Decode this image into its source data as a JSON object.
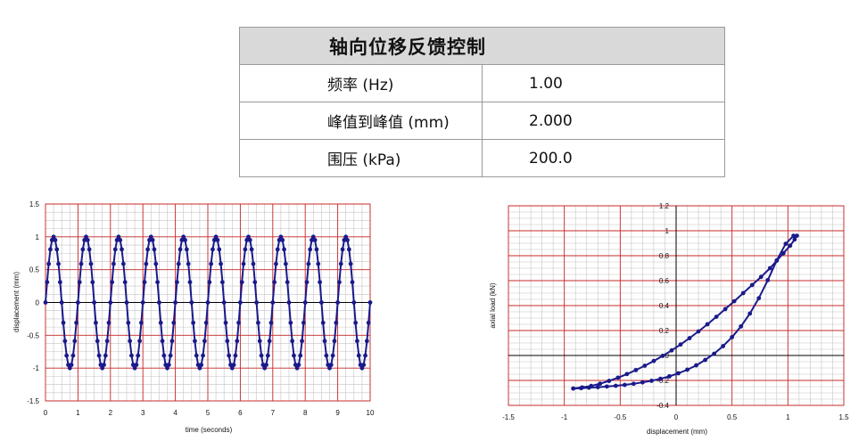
{
  "table": {
    "title": "轴向位移反馈控制",
    "rows": [
      {
        "label": "频率 (Hz)",
        "value": "1.00"
      },
      {
        "label": "峰值到峰值 (mm)",
        "value": "2.000"
      },
      {
        "label": "围压 (kPa)",
        "value": "200.0"
      }
    ]
  },
  "chart_data": [
    {
      "type": "scatter",
      "mode": "line+markers",
      "title": "",
      "xlabel": "time (seconds)",
      "ylabel": "displacement (mm)",
      "xlim": [
        0,
        10
      ],
      "ylim": [
        -1.5,
        1.5
      ],
      "x_ticks": [
        "0",
        "1",
        "2",
        "3",
        "4",
        "5",
        "6",
        "7",
        "8",
        "9",
        "10"
      ],
      "y_ticks": [
        "1.5",
        "1",
        "0.5",
        "0",
        "-0.5",
        "-1",
        "-1.5"
      ],
      "series": [
        {
          "color": "#1a1a8c",
          "x": [
            0.0,
            0.05,
            0.1,
            0.15,
            0.2,
            0.25,
            0.3,
            0.35,
            0.4,
            0.45,
            0.5,
            0.55,
            0.6,
            0.65,
            0.7,
            0.75,
            0.8,
            0.85,
            0.9,
            0.95,
            1.0,
            1.05,
            1.1,
            1.15,
            1.2,
            1.25,
            1.3,
            1.35,
            1.4,
            1.45,
            1.5,
            1.55,
            1.6,
            1.65,
            1.7,
            1.75,
            1.8,
            1.85,
            1.9,
            1.95,
            2.0,
            2.05,
            2.1,
            2.15,
            2.2,
            2.25,
            2.3,
            2.35,
            2.4,
            2.45,
            2.5,
            2.55,
            2.6,
            2.65,
            2.7,
            2.75,
            2.8,
            2.85,
            2.9,
            2.95,
            3.0,
            3.05,
            3.1,
            3.15,
            3.2,
            3.25,
            3.3,
            3.35,
            3.4,
            3.45,
            3.5,
            3.55,
            3.6,
            3.65,
            3.7,
            3.75,
            3.8,
            3.85,
            3.9,
            3.95,
            4.0,
            4.05,
            4.1,
            4.15,
            4.2,
            4.25,
            4.3,
            4.35,
            4.4,
            4.45,
            4.5,
            4.55,
            4.6,
            4.65,
            4.7,
            4.75,
            4.8,
            4.85,
            4.9,
            4.95,
            5.0,
            5.05,
            5.1,
            5.15,
            5.2,
            5.25,
            5.3,
            5.35,
            5.4,
            5.45,
            5.5,
            5.55,
            5.6,
            5.65,
            5.7,
            5.75,
            5.8,
            5.85,
            5.9,
            5.95,
            6.0,
            6.05,
            6.1,
            6.15,
            6.2,
            6.25,
            6.3,
            6.35,
            6.4,
            6.45,
            6.5,
            6.55,
            6.6,
            6.65,
            6.7,
            6.75,
            6.8,
            6.85,
            6.9,
            6.95,
            7.0,
            7.05,
            7.1,
            7.15,
            7.2,
            7.25,
            7.3,
            7.35,
            7.4,
            7.45,
            7.5,
            7.55,
            7.6,
            7.65,
            7.7,
            7.75,
            7.8,
            7.85,
            7.9,
            7.95,
            8.0,
            8.05,
            8.1,
            8.15,
            8.2,
            8.25,
            8.3,
            8.35,
            8.4,
            8.45,
            8.5,
            8.55,
            8.6,
            8.65,
            8.7,
            8.75,
            8.8,
            8.85,
            8.9,
            8.95,
            9.0,
            9.05,
            9.1,
            9.15,
            9.2,
            9.25,
            9.3,
            9.35,
            9.4,
            9.45,
            9.5,
            9.55,
            9.6,
            9.65,
            9.7,
            9.75,
            9.8,
            9.85,
            9.9,
            9.95,
            10.0
          ],
          "y": [
            0.0,
            0.309,
            0.588,
            0.809,
            0.951,
            1.0,
            0.951,
            0.809,
            0.588,
            0.309,
            0.0,
            -0.309,
            -0.588,
            -0.809,
            -0.951,
            -1.0,
            -0.951,
            -0.809,
            -0.588,
            -0.309,
            0.0,
            0.309,
            0.588,
            0.809,
            0.951,
            1.0,
            0.951,
            0.809,
            0.588,
            0.309,
            0.0,
            -0.309,
            -0.588,
            -0.809,
            -0.951,
            -1.0,
            -0.951,
            -0.809,
            -0.588,
            -0.309,
            0.0,
            0.309,
            0.588,
            0.809,
            0.951,
            1.0,
            0.951,
            0.809,
            0.588,
            0.309,
            0.0,
            -0.309,
            -0.588,
            -0.809,
            -0.951,
            -1.0,
            -0.951,
            -0.809,
            -0.588,
            -0.309,
            0.0,
            0.309,
            0.588,
            0.809,
            0.951,
            1.0,
            0.951,
            0.809,
            0.588,
            0.309,
            0.0,
            -0.309,
            -0.588,
            -0.809,
            -0.951,
            -1.0,
            -0.951,
            -0.809,
            -0.588,
            -0.309,
            0.0,
            0.309,
            0.588,
            0.809,
            0.951,
            1.0,
            0.951,
            0.809,
            0.588,
            0.309,
            0.0,
            -0.309,
            -0.588,
            -0.809,
            -0.951,
            -1.0,
            -0.951,
            -0.809,
            -0.588,
            -0.309,
            0.0,
            0.309,
            0.588,
            0.809,
            0.951,
            1.0,
            0.951,
            0.809,
            0.588,
            0.309,
            0.0,
            -0.309,
            -0.588,
            -0.809,
            -0.951,
            -1.0,
            -0.951,
            -0.809,
            -0.588,
            -0.309,
            0.0,
            0.309,
            0.588,
            0.809,
            0.951,
            1.0,
            0.951,
            0.809,
            0.588,
            0.309,
            0.0,
            -0.309,
            -0.588,
            -0.809,
            -0.951,
            -1.0,
            -0.951,
            -0.809,
            -0.588,
            -0.309,
            0.0,
            0.309,
            0.588,
            0.809,
            0.951,
            1.0,
            0.951,
            0.809,
            0.588,
            0.309,
            0.0,
            -0.309,
            -0.588,
            -0.809,
            -0.951,
            -1.0,
            -0.951,
            -0.809,
            -0.588,
            -0.309,
            0.0,
            0.309,
            0.588,
            0.809,
            0.951,
            1.0,
            0.951,
            0.809,
            0.588,
            0.309,
            0.0,
            -0.309,
            -0.588,
            -0.809,
            -0.951,
            -1.0,
            -0.951,
            -0.809,
            -0.588,
            -0.309,
            0.0,
            0.309,
            0.588,
            0.809,
            0.951,
            1.0,
            0.951,
            0.809,
            0.588,
            0.309,
            0.0,
            -0.309,
            -0.588,
            -0.809,
            -0.951,
            -1.0,
            -0.951,
            -0.809,
            -0.588,
            -0.309,
            0.0
          ]
        }
      ]
    },
    {
      "type": "scatter",
      "mode": "line+markers",
      "title": "",
      "xlabel": "displacement (mm)",
      "ylabel": "axial load (kN)",
      "xlim": [
        -1.5,
        1.5
      ],
      "ylim": [
        -0.4,
        1.2
      ],
      "x_ticks": [
        "-1.5",
        "-1",
        "-0.5",
        "0",
        "0.5",
        "1",
        "1.5"
      ],
      "y_ticks": [
        "1.2",
        "1",
        "0.8",
        "0.6",
        "0.4",
        "0.2",
        "0",
        "-0.2",
        "-0.4"
      ],
      "series": [
        {
          "color": "#1a1a8c",
          "x": [
            -0.92,
            -0.85,
            -0.78,
            -0.7,
            -0.62,
            -0.54,
            -0.46,
            -0.38,
            -0.3,
            -0.22,
            -0.14,
            -0.06,
            0.02,
            0.1,
            0.18,
            0.26,
            0.34,
            0.42,
            0.5,
            0.58,
            0.66,
            0.74,
            0.82,
            0.9,
            0.98,
            1.05,
            1.08,
            1.06,
            1.02,
            0.96,
            0.9,
            0.84,
            0.76,
            0.68,
            0.6,
            0.52,
            0.44,
            0.36,
            0.28,
            0.2,
            0.12,
            0.04,
            -0.04,
            -0.12,
            -0.2,
            -0.28,
            -0.36,
            -0.44,
            -0.52,
            -0.6,
            -0.68,
            -0.76,
            -0.84,
            -0.92
          ],
          "y": [
            -0.265,
            -0.262,
            -0.258,
            -0.254,
            -0.249,
            -0.243,
            -0.236,
            -0.227,
            -0.216,
            -0.203,
            -0.187,
            -0.167,
            -0.143,
            -0.114,
            -0.079,
            -0.036,
            0.014,
            0.075,
            0.147,
            0.233,
            0.336,
            0.459,
            0.604,
            0.762,
            0.895,
            0.96,
            0.96,
            0.93,
            0.88,
            0.82,
            0.76,
            0.7,
            0.63,
            0.565,
            0.5,
            0.435,
            0.372,
            0.31,
            0.25,
            0.193,
            0.139,
            0.088,
            0.041,
            -0.003,
            -0.044,
            -0.082,
            -0.117,
            -0.149,
            -0.178,
            -0.204,
            -0.226,
            -0.244,
            -0.256,
            -0.265
          ]
        }
      ]
    }
  ]
}
